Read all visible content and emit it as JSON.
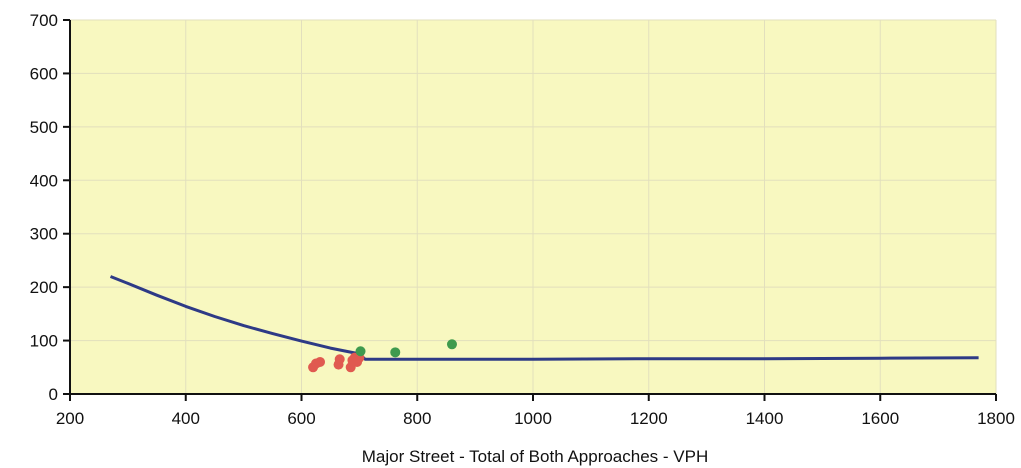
{
  "chart_data": {
    "type": "scatter",
    "title": "",
    "xlabel": "Major Street - Total of Both Approaches - VPH",
    "ylabel": "",
    "xlim": [
      200,
      1800
    ],
    "ylim": [
      0,
      700
    ],
    "x_ticks": [
      200,
      400,
      600,
      800,
      1000,
      1200,
      1400,
      1600,
      1800
    ],
    "y_ticks": [
      0,
      100,
      200,
      300,
      400,
      500,
      600,
      700
    ],
    "grid": true,
    "legend": "none",
    "colors": {
      "plot_background": "#f8f8c0",
      "grid": "#e2dfbd",
      "axis": "#111111",
      "curve": "#2e3a86",
      "red_points": "#e05a50",
      "green_points": "#3f9a4e"
    },
    "curve": {
      "x": [
        270,
        300,
        350,
        400,
        450,
        500,
        550,
        600,
        650,
        700,
        710,
        800,
        1000,
        1200,
        1400,
        1600,
        1770
      ],
      "y": [
        220,
        207,
        185,
        164,
        145,
        128,
        113,
        99,
        86,
        75,
        65,
        65,
        65,
        66,
        66,
        67,
        68
      ]
    },
    "series": [
      {
        "color": "#e05a50",
        "x": [
          620,
          625,
          632,
          664,
          666,
          685,
          688,
          692,
          696,
          700
        ],
        "y": [
          50,
          57,
          60,
          55,
          65,
          50,
          63,
          68,
          60,
          68
        ]
      },
      {
        "color": "#3f9a4e",
        "x": [
          702,
          762,
          860
        ],
        "y": [
          80,
          78,
          93
        ]
      }
    ]
  }
}
